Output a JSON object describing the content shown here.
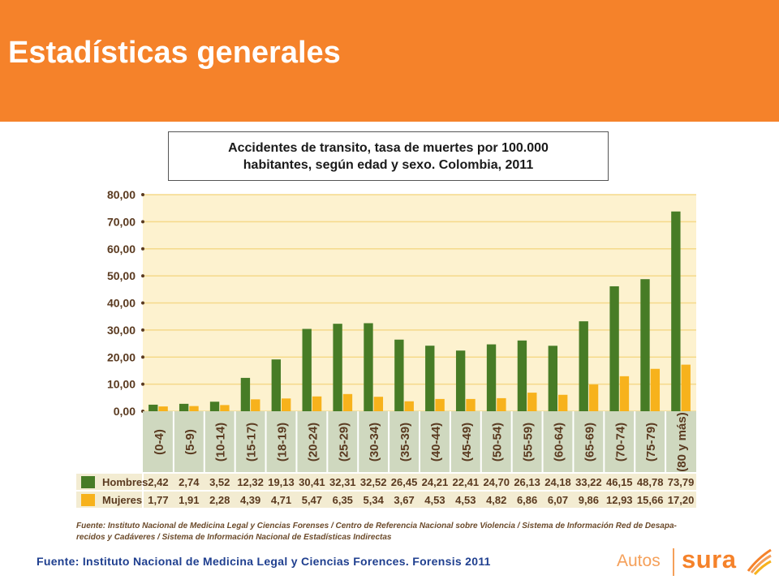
{
  "page": {
    "title": "Estadísticas generales",
    "footer_source": "Fuente: Instituto Nacional de Medicina Legal y Ciencias Forences. Forensis 2011"
  },
  "chart_box_title": {
    "line1": "Accidentes de transito, tasa de muertes por 100.000",
    "line2": "habitantes, según edad y sexo. Colombia, 2011"
  },
  "brand": {
    "autos": "Autos",
    "sura": "sura"
  },
  "chart_data": {
    "type": "bar",
    "categories": [
      "(0-4)",
      "(5-9)",
      "(10-14)",
      "(15-17)",
      "(18-19)",
      "(20-24)",
      "(25-29)",
      "(30-34)",
      "(35-39)",
      "(40-44)",
      "(45-49)",
      "(50-54)",
      "(55-59)",
      "(60-64)",
      "(65-69)",
      "(70-74)",
      "(75-79)",
      "(80 y más)"
    ],
    "series": [
      {
        "name": "Hombres",
        "color": "#477c26",
        "values": [
          2.42,
          2.74,
          3.52,
          12.32,
          19.13,
          30.41,
          32.31,
          32.52,
          26.45,
          24.21,
          22.41,
          24.7,
          26.13,
          24.18,
          33.22,
          46.15,
          48.78,
          73.79
        ],
        "labels": [
          "2,42",
          "2,74",
          "3,52",
          "12,32",
          "19,13",
          "30,41",
          "32,31",
          "32,52",
          "26,45",
          "24,21",
          "22,41",
          "24,70",
          "26,13",
          "24,18",
          "33,22",
          "46,15",
          "48,78",
          "73,79"
        ]
      },
      {
        "name": "Mujeres",
        "color": "#f7b21c",
        "values": [
          1.77,
          1.91,
          2.28,
          4.39,
          4.71,
          5.47,
          6.35,
          5.34,
          3.67,
          4.53,
          4.53,
          4.82,
          6.86,
          6.07,
          9.86,
          12.93,
          15.66,
          17.2
        ],
        "labels": [
          "1,77",
          "1,91",
          "2,28",
          "4,39",
          "4,71",
          "5,47",
          "6,35",
          "5,34",
          "3,67",
          "4,53",
          "4,53",
          "4,82",
          "6,86",
          "6,07",
          "9,86",
          "12,93",
          "15,66",
          "17,20"
        ]
      }
    ],
    "yticks": [
      "0,00",
      "10,00",
      "20,00",
      "30,00",
      "40,00",
      "50,00",
      "60,00",
      "70,00",
      "80,00"
    ],
    "ylim": [
      0,
      80
    ],
    "grid": true,
    "legend": "table-below",
    "source_note": [
      "Fuente: Instituto Nacional de Medicina Legal y Ciencias Forenses / Centro de Referencia Nacional sobre Violencia / Sistema de Información Red de Desapa-",
      "recidos y Cadáveres / Sistema de Información Nacional de Estadísticas Indirectas"
    ],
    "colors": {
      "plot_bg": "#fdf2cf",
      "grid": "#f5d98a",
      "axis_text": "#5a3a20",
      "cat_bg": "#cfd8bf",
      "table_bg": "#f3ecd2",
      "note_text": "#6b4a2a"
    }
  }
}
